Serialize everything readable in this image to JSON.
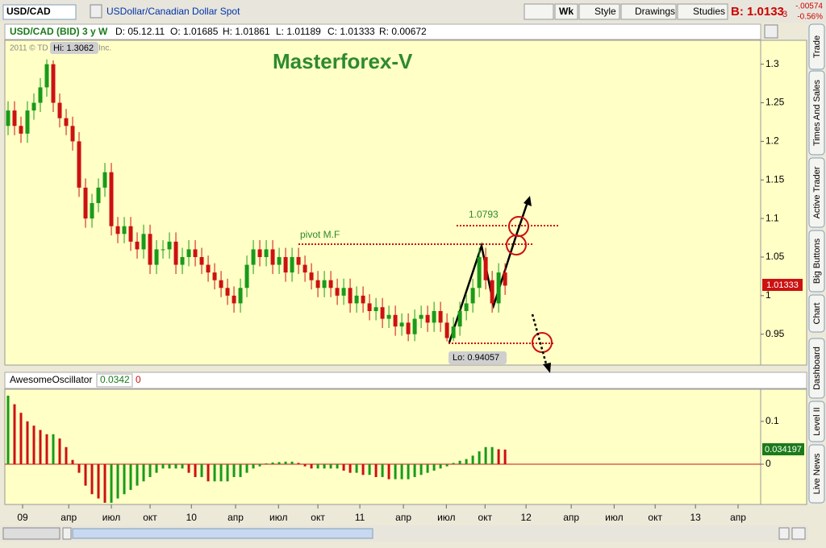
{
  "toolbar": {
    "symbol": "USD/CAD",
    "description": "USDollar/Canadian Dollar Spot",
    "buttons": [
      "Wk",
      "Style",
      "Drawings",
      "Studies"
    ],
    "bid": "B: 1.0133",
    "bid_frac": "3",
    "change": "-.00574",
    "change_pct": "-0.56%"
  },
  "info_bar": {
    "items": [
      "USD/CAD (BID) 3 y W",
      "D: 05.12.11",
      "O: 1.01685",
      "H: 1.01861",
      "L: 1.01189",
      "C: 1.01333",
      "R: 0.00672"
    ]
  },
  "annotations": {
    "watermark": "Masterforex-V",
    "copyright": "2011 © TD IP Company, Inc.",
    "hi_label": "Hi: 1.3062",
    "lo_label": "Lo: 0.94057",
    "level_label": "1.0793",
    "pivot_label": "pivot M.F",
    "last_price": "1.01333",
    "osc_last": "0.034197"
  },
  "chart_data": [
    {
      "type": "candlestick",
      "up_color": "#1a9a1a",
      "down_color": "#cc1111",
      "ylim": [
        0.91,
        1.331
      ],
      "yticks": [
        0.95,
        1,
        1.05,
        1.1,
        1.15,
        1.2,
        1.25,
        1.3
      ],
      "xlim": [
        -0.5,
        116.6
      ],
      "xticks": [
        {
          "value": 2.25,
          "label": "09"
        },
        {
          "value": 9.4,
          "label": "апр"
        },
        {
          "value": 16,
          "label": "июл"
        },
        {
          "value": 22,
          "label": "окт"
        },
        {
          "value": 28.4,
          "label": "10"
        },
        {
          "value": 35.25,
          "label": "апр"
        },
        {
          "value": 41.9,
          "label": "июл"
        },
        {
          "value": 48,
          "label": "окт"
        },
        {
          "value": 54.5,
          "label": "11"
        },
        {
          "value": 61.25,
          "label": "апр"
        },
        {
          "value": 67.9,
          "label": "июл"
        },
        {
          "value": 73.9,
          "label": "окт"
        },
        {
          "value": 80.25,
          "label": "12"
        },
        {
          "value": 87.25,
          "label": "апр"
        },
        {
          "value": 93.9,
          "label": "июл"
        },
        {
          "value": 100.25,
          "label": "окт"
        },
        {
          "value": 106.5,
          "label": "13"
        },
        {
          "value": 113.1,
          "label": "апр"
        }
      ],
      "candles": [
        [
          1.22,
          1.252,
          1.208,
          1.24
        ],
        [
          1.24,
          1.252,
          1.208,
          1.22
        ],
        [
          1.22,
          1.232,
          1.198,
          1.21
        ],
        [
          1.21,
          1.252,
          1.198,
          1.24
        ],
        [
          1.24,
          1.262,
          1.228,
          1.25
        ],
        [
          1.25,
          1.282,
          1.238,
          1.27
        ],
        [
          1.27,
          1.3062,
          1.258,
          1.3
        ],
        [
          1.3,
          1.305,
          1.238,
          1.25
        ],
        [
          1.25,
          1.262,
          1.218,
          1.23
        ],
        [
          1.23,
          1.242,
          1.208,
          1.22
        ],
        [
          1.22,
          1.232,
          1.188,
          1.2
        ],
        [
          1.2,
          1.212,
          1.128,
          1.14
        ],
        [
          1.14,
          1.152,
          1.088,
          1.1
        ],
        [
          1.1,
          1.132,
          1.088,
          1.12
        ],
        [
          1.12,
          1.152,
          1.108,
          1.14
        ],
        [
          1.14,
          1.172,
          1.128,
          1.16
        ],
        [
          1.16,
          1.172,
          1.078,
          1.09
        ],
        [
          1.09,
          1.102,
          1.068,
          1.08
        ],
        [
          1.08,
          1.102,
          1.068,
          1.09
        ],
        [
          1.09,
          1.102,
          1.058,
          1.07
        ],
        [
          1.07,
          1.082,
          1.048,
          1.06
        ],
        [
          1.06,
          1.092,
          1.048,
          1.08
        ],
        [
          1.08,
          1.092,
          1.028,
          1.04
        ],
        [
          1.04,
          1.072,
          1.028,
          1.06
        ],
        [
          1.06,
          1.072,
          1.048,
          1.06
        ],
        [
          1.06,
          1.082,
          1.048,
          1.07
        ],
        [
          1.07,
          1.082,
          1.028,
          1.04
        ],
        [
          1.04,
          1.062,
          1.028,
          1.05
        ],
        [
          1.05,
          1.072,
          1.038,
          1.06
        ],
        [
          1.06,
          1.072,
          1.038,
          1.05
        ],
        [
          1.05,
          1.062,
          1.028,
          1.04
        ],
        [
          1.04,
          1.052,
          1.018,
          1.03
        ],
        [
          1.03,
          1.042,
          1.008,
          1.02
        ],
        [
          1.02,
          1.032,
          0.998,
          1.01
        ],
        [
          1.01,
          1.022,
          0.988,
          1.0
        ],
        [
          1.0,
          1.012,
          0.978,
          0.99
        ],
        [
          0.99,
          1.022,
          0.978,
          1.01
        ],
        [
          1.01,
          1.052,
          0.998,
          1.04
        ],
        [
          1.04,
          1.072,
          1.028,
          1.06
        ],
        [
          1.06,
          1.072,
          1.038,
          1.05
        ],
        [
          1.05,
          1.072,
          1.038,
          1.06
        ],
        [
          1.06,
          1.072,
          1.028,
          1.04
        ],
        [
          1.04,
          1.062,
          1.028,
          1.05
        ],
        [
          1.05,
          1.062,
          1.018,
          1.03
        ],
        [
          1.03,
          1.062,
          1.018,
          1.05
        ],
        [
          1.05,
          1.062,
          1.028,
          1.04
        ],
        [
          1.04,
          1.052,
          1.018,
          1.03
        ],
        [
          1.03,
          1.042,
          1.008,
          1.02
        ],
        [
          1.02,
          1.032,
          0.998,
          1.01
        ],
        [
          1.01,
          1.032,
          0.998,
          1.02
        ],
        [
          1.02,
          1.032,
          0.998,
          1.01
        ],
        [
          1.01,
          1.022,
          0.988,
          1.0
        ],
        [
          1.0,
          1.022,
          0.988,
          1.01
        ],
        [
          1.01,
          1.022,
          0.978,
          0.99
        ],
        [
          0.99,
          1.012,
          0.978,
          1.0
        ],
        [
          1.0,
          1.012,
          0.978,
          0.99
        ],
        [
          0.99,
          1.002,
          0.968,
          0.98
        ],
        [
          0.98,
          0.997,
          0.968,
          0.985
        ],
        [
          0.985,
          0.997,
          0.958,
          0.97
        ],
        [
          0.97,
          0.987,
          0.958,
          0.975
        ],
        [
          0.975,
          0.987,
          0.948,
          0.96
        ],
        [
          0.96,
          0.977,
          0.948,
          0.965
        ],
        [
          0.965,
          0.977,
          0.941,
          0.95
        ],
        [
          0.95,
          0.982,
          0.941,
          0.97
        ],
        [
          0.97,
          0.987,
          0.958,
          0.975
        ],
        [
          0.975,
          0.987,
          0.953,
          0.965
        ],
        [
          0.965,
          0.992,
          0.953,
          0.98
        ],
        [
          0.98,
          0.992,
          0.953,
          0.965
        ],
        [
          0.965,
          0.977,
          0.94057,
          0.945
        ],
        [
          0.945,
          0.972,
          0.941,
          0.96
        ],
        [
          0.96,
          0.992,
          0.948,
          0.98
        ],
        [
          0.98,
          1.002,
          0.968,
          0.99
        ],
        [
          0.99,
          1.022,
          0.978,
          1.01
        ],
        [
          1.01,
          1.062,
          0.998,
          1.05
        ],
        [
          1.05,
          1.062,
          1.008,
          1.02
        ],
        [
          1.02,
          1.032,
          0.978,
          0.99
        ],
        [
          0.99,
          1.042,
          0.978,
          1.03
        ],
        [
          1.03,
          1.042,
          1.001,
          1.013
        ]
      ]
    },
    {
      "type": "bar",
      "title": "AwesomeOscillator",
      "last_value": "0.0342",
      "zero_label": "0",
      "up_color": "#1a9a1a",
      "down_color": "#cc1111",
      "ylim": [
        -0.094,
        0.175
      ],
      "yticks": [
        0,
        0.1
      ],
      "xlim": [
        -0.5,
        116.6
      ],
      "values": [
        0.16,
        0.14,
        0.12,
        0.1,
        0.09,
        0.08,
        0.07,
        0.07,
        0.06,
        0.04,
        0.01,
        -0.02,
        -0.05,
        -0.07,
        -0.08,
        -0.09,
        -0.09,
        -0.08,
        -0.07,
        -0.06,
        -0.05,
        -0.04,
        -0.03,
        -0.02,
        -0.01,
        -0.01,
        -0.01,
        -0.01,
        -0.02,
        -0.03,
        -0.03,
        -0.04,
        -0.04,
        -0.04,
        -0.04,
        -0.03,
        -0.03,
        -0.02,
        -0.01,
        -0.005,
        0.002,
        0.004,
        0.005,
        0.006,
        0.006,
        0.003,
        -0.005,
        -0.01,
        -0.01,
        -0.01,
        -0.01,
        -0.01,
        -0.015,
        -0.02,
        -0.02,
        -0.025,
        -0.025,
        -0.03,
        -0.03,
        -0.035,
        -0.035,
        -0.035,
        -0.035,
        -0.03,
        -0.025,
        -0.02,
        -0.015,
        -0.01,
        -0.005,
        0.003,
        0.008,
        0.012,
        0.02,
        0.03,
        0.04,
        0.04,
        0.035,
        0.0342
      ]
    }
  ],
  "sidebar": {
    "tabs": [
      "Trade",
      "Times And Sales",
      "Active Trader",
      "Big Buttons",
      "Chart",
      "Dashboard",
      "Level II",
      "Live News"
    ]
  }
}
